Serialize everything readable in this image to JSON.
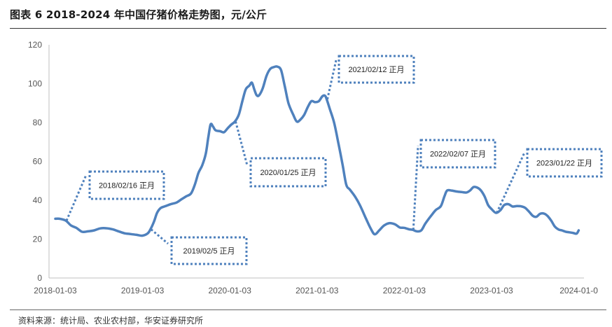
{
  "header": {
    "title": "图表 6 2018-2024 年中国仔猪价格走势图，元/公斤"
  },
  "footer": {
    "source": "资料来源：统计局、农业农村部，华安证券研究所"
  },
  "colors": {
    "series": "#4f81bd",
    "annotation": "#4f81bd",
    "axis": "#bfbfbf"
  },
  "chart_data": {
    "type": "line",
    "title": "",
    "xlabel": "",
    "ylabel": "",
    "ylim": [
      0,
      120
    ],
    "yticks": [
      0,
      20,
      40,
      60,
      80,
      100,
      120
    ],
    "xticks": [
      "2018-01-03",
      "2019-01-03",
      "2020-01-03",
      "2021-01-03",
      "2022-01-03",
      "2023-01-03",
      "2024-01-0"
    ],
    "grid": false,
    "legend": "none",
    "series": [
      {
        "points": [
          [
            "2018-01-03",
            30.5
          ],
          [
            "2018-01-20",
            30.5
          ],
          [
            "2018-02-16",
            29.5
          ],
          [
            "2018-03-10",
            27.0
          ],
          [
            "2018-04-01",
            25.8
          ],
          [
            "2018-04-25",
            23.8
          ],
          [
            "2018-05-20",
            24.0
          ],
          [
            "2018-06-15",
            24.5
          ],
          [
            "2018-07-10",
            25.5
          ],
          [
            "2018-08-05",
            25.6
          ],
          [
            "2018-09-01",
            25.0
          ],
          [
            "2018-09-25",
            24.0
          ],
          [
            "2018-10-20",
            23.0
          ],
          [
            "2018-11-15",
            22.6
          ],
          [
            "2018-12-10",
            22.2
          ],
          [
            "2019-01-03",
            21.8
          ],
          [
            "2019-01-25",
            23.0
          ],
          [
            "2019-02-05",
            25.0
          ],
          [
            "2019-02-20",
            29.0
          ],
          [
            "2019-03-05",
            33.5
          ],
          [
            "2019-03-20",
            36.0
          ],
          [
            "2019-04-10",
            37.0
          ],
          [
            "2019-05-01",
            38.0
          ],
          [
            "2019-05-25",
            38.8
          ],
          [
            "2019-06-15",
            40.5
          ],
          [
            "2019-07-05",
            42.0
          ],
          [
            "2019-07-25",
            43.5
          ],
          [
            "2019-08-10",
            48.0
          ],
          [
            "2019-08-25",
            54.0
          ],
          [
            "2019-09-10",
            58.0
          ],
          [
            "2019-09-25",
            64.0
          ],
          [
            "2019-10-05",
            72.0
          ],
          [
            "2019-10-15",
            79.0
          ],
          [
            "2019-10-25",
            78.0
          ],
          [
            "2019-11-05",
            76.0
          ],
          [
            "2019-11-25",
            75.5
          ],
          [
            "2019-12-10",
            75.0
          ],
          [
            "2019-12-25",
            77.0
          ],
          [
            "2020-01-10",
            79.0
          ],
          [
            "2020-01-25",
            80.5
          ],
          [
            "2020-02-10",
            84.0
          ],
          [
            "2020-02-25",
            91.0
          ],
          [
            "2020-03-10",
            97.0
          ],
          [
            "2020-03-25",
            99.0
          ],
          [
            "2020-04-05",
            100.5
          ],
          [
            "2020-04-15",
            97.0
          ],
          [
            "2020-04-25",
            94.0
          ],
          [
            "2020-05-05",
            94.0
          ],
          [
            "2020-05-20",
            97.5
          ],
          [
            "2020-06-05",
            104.0
          ],
          [
            "2020-06-20",
            107.5
          ],
          [
            "2020-07-05",
            108.5
          ],
          [
            "2020-07-20",
            108.8
          ],
          [
            "2020-08-05",
            107.0
          ],
          [
            "2020-08-20",
            99.0
          ],
          [
            "2020-09-05",
            90.0
          ],
          [
            "2020-09-25",
            84.0
          ],
          [
            "2020-10-10",
            80.5
          ],
          [
            "2020-10-25",
            81.5
          ],
          [
            "2020-11-10",
            84.0
          ],
          [
            "2020-11-25",
            88.0
          ],
          [
            "2020-12-10",
            91.0
          ],
          [
            "2020-12-25",
            90.5
          ],
          [
            "2021-01-10",
            91.0
          ],
          [
            "2021-01-25",
            93.5
          ],
          [
            "2021-02-05",
            93.8
          ],
          [
            "2021-02-12",
            92.0
          ],
          [
            "2021-02-25",
            87.0
          ],
          [
            "2021-03-15",
            80.0
          ],
          [
            "2021-04-01",
            70.0
          ],
          [
            "2021-04-20",
            58.0
          ],
          [
            "2021-05-05",
            48.0
          ],
          [
            "2021-05-20",
            45.5
          ],
          [
            "2021-06-10",
            42.0
          ],
          [
            "2021-07-01",
            37.5
          ],
          [
            "2021-07-25",
            31.0
          ],
          [
            "2021-08-15",
            25.5
          ],
          [
            "2021-09-01",
            22.5
          ],
          [
            "2021-09-20",
            24.5
          ],
          [
            "2021-10-10",
            27.0
          ],
          [
            "2021-11-01",
            28.2
          ],
          [
            "2021-11-25",
            27.6
          ],
          [
            "2021-12-15",
            26.0
          ],
          [
            "2022-01-03",
            25.8
          ],
          [
            "2022-01-25",
            25.0
          ],
          [
            "2022-02-07",
            24.8
          ],
          [
            "2022-02-25",
            24.0
          ],
          [
            "2022-03-15",
            24.5
          ],
          [
            "2022-04-01",
            28.0
          ],
          [
            "2022-04-25",
            32.0
          ],
          [
            "2022-05-15",
            35.0
          ],
          [
            "2022-06-05",
            37.0
          ],
          [
            "2022-06-20",
            42.0
          ],
          [
            "2022-07-01",
            45.0
          ],
          [
            "2022-07-20",
            45.0
          ],
          [
            "2022-08-10",
            44.5
          ],
          [
            "2022-09-01",
            44.2
          ],
          [
            "2022-09-20",
            44.0
          ],
          [
            "2022-10-05",
            45.0
          ],
          [
            "2022-10-20",
            46.8
          ],
          [
            "2022-11-05",
            46.5
          ],
          [
            "2022-11-20",
            45.0
          ],
          [
            "2022-12-05",
            42.0
          ],
          [
            "2022-12-20",
            37.5
          ],
          [
            "2023-01-03",
            35.5
          ],
          [
            "2023-01-22",
            33.5
          ],
          [
            "2023-02-10",
            35.0
          ],
          [
            "2023-02-25",
            37.5
          ],
          [
            "2023-03-15",
            38.0
          ],
          [
            "2023-04-01",
            36.8
          ],
          [
            "2023-04-20",
            37.0
          ],
          [
            "2023-05-10",
            36.8
          ],
          [
            "2023-05-25",
            36.0
          ],
          [
            "2023-06-10",
            34.0
          ],
          [
            "2023-06-25",
            32.0
          ],
          [
            "2023-07-10",
            31.5
          ],
          [
            "2023-07-25",
            33.0
          ],
          [
            "2023-08-10",
            33.2
          ],
          [
            "2023-08-25",
            32.0
          ],
          [
            "2023-09-10",
            29.5
          ],
          [
            "2023-09-25",
            26.5
          ],
          [
            "2023-10-10",
            25.0
          ],
          [
            "2023-10-25",
            24.5
          ],
          [
            "2023-11-10",
            23.8
          ],
          [
            "2023-11-25",
            23.5
          ],
          [
            "2023-12-10",
            23.2
          ],
          [
            "2023-12-25",
            22.8
          ],
          [
            "2024-01-03",
            24.5
          ]
        ]
      }
    ],
    "annotations": [
      {
        "label": "2018/02/16 正月",
        "point": [
          "2018-02-16",
          29.5
        ]
      },
      {
        "label": "2019/02/5 正月",
        "point": [
          "2019-02-05",
          25.0
        ]
      },
      {
        "label": "2020/01/25 正月",
        "point": [
          "2020-01-25",
          80.5
        ]
      },
      {
        "label": "2021/02/12 正月",
        "point": [
          "2021-02-12",
          92.0
        ]
      },
      {
        "label": "2022/02/07 正月",
        "point": [
          "2022-02-07",
          24.8
        ]
      },
      {
        "label": "2023/01/22 正月",
        "point": [
          "2023-01-22",
          33.5
        ]
      }
    ]
  }
}
